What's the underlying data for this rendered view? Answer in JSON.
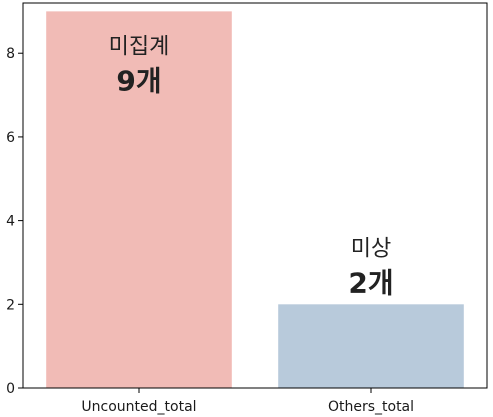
{
  "chart_data": {
    "type": "bar",
    "categories": [
      "Uncounted_total",
      "Others_total"
    ],
    "values": [
      9,
      2
    ],
    "bar_labels": [
      {
        "name": "미집계",
        "count": "9개"
      },
      {
        "name": "미상",
        "count": "2개"
      }
    ],
    "colors": [
      "#f1bbb6",
      "#b8cadb"
    ],
    "ylim": [
      0,
      9.2
    ],
    "yticks": [
      0,
      2,
      4,
      6,
      8
    ],
    "title": "",
    "xlabel": "",
    "ylabel": "",
    "grid": false
  }
}
